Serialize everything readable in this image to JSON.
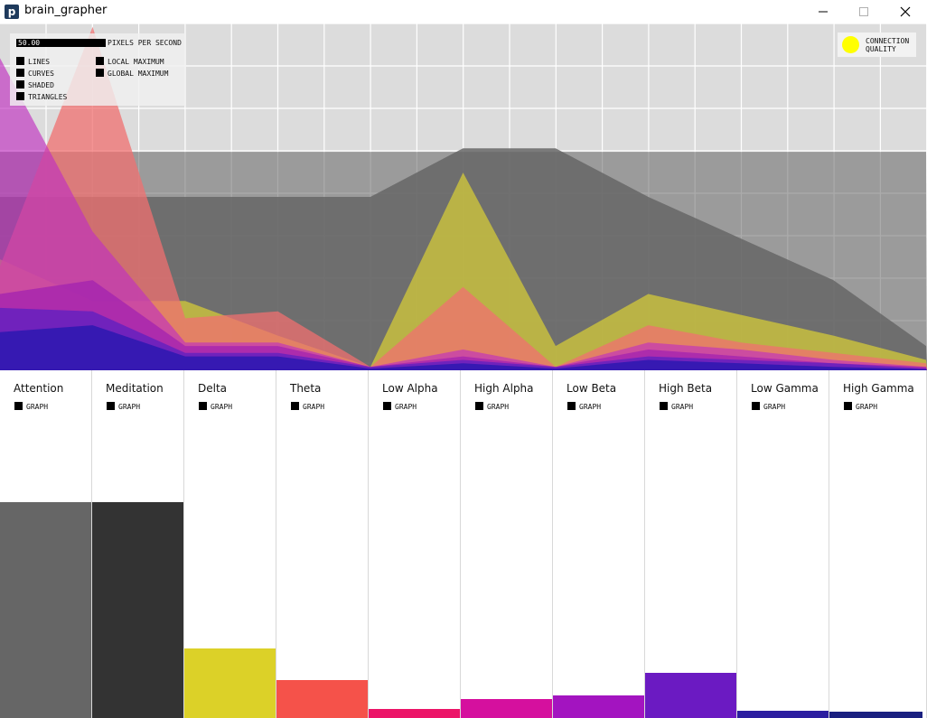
{
  "window": {
    "title": "brain_grapher",
    "icon": "processing-logo-icon"
  },
  "controls": {
    "pixels_per_second_value": "50.00",
    "pixels_per_second_label": "PIXELS PER SECOND",
    "checkboxes": [
      "LINES",
      "CURVES",
      "SHADED",
      "TRIANGLES",
      "LOCAL MAXIMUM",
      "GLOBAL MAXIMUM"
    ]
  },
  "connection": {
    "label_line1": "CONNECTION",
    "label_line2": "QUALITY",
    "color": "#ffff00"
  },
  "channels": [
    {
      "name": "Attention",
      "graph_label": "GRAPH",
      "color": "#666666",
      "level": 0.62
    },
    {
      "name": "Meditation",
      "graph_label": "GRAPH",
      "color": "#333333",
      "level": 0.62
    },
    {
      "name": "Delta",
      "graph_label": "GRAPH",
      "color": "#dcd128",
      "level": 0.2
    },
    {
      "name": "Theta",
      "graph_label": "GRAPH",
      "color": "#f5524a",
      "level": 0.11
    },
    {
      "name": "Low Alpha",
      "graph_label": "GRAPH",
      "color": "#ec1468",
      "level": 0.025
    },
    {
      "name": "High Alpha",
      "graph_label": "GRAPH",
      "color": "#d5109e",
      "level": 0.055
    },
    {
      "name": "Low Beta",
      "graph_label": "GRAPH",
      "color": "#a314c0",
      "level": 0.065
    },
    {
      "name": "High Beta",
      "graph_label": "GRAPH",
      "color": "#6b1ac2",
      "level": 0.13
    },
    {
      "name": "Low Gamma",
      "graph_label": "GRAPH",
      "color": "#2c1ea0",
      "level": 0.022
    },
    {
      "name": "High Gamma",
      "graph_label": "GRAPH",
      "color": "#1a2080",
      "level": 0.018
    }
  ],
  "graph": {
    "background": "#dcdcdc",
    "series": [
      {
        "name": "Attention",
        "color": "#666666",
        "opacity": 0.55,
        "values": [
          0.63,
          0.63,
          0.63,
          0.63,
          0.63,
          0.63,
          0.63,
          0.63,
          0.63,
          0.63,
          0.63
        ]
      },
      {
        "name": "Meditation",
        "color": "#666666",
        "opacity": 0.85,
        "values": [
          0.5,
          0.5,
          0.5,
          0.5,
          0.5,
          0.64,
          0.64,
          0.5,
          0.38,
          0.26,
          0.07
        ]
      },
      {
        "name": "Delta",
        "color": "#c8c040",
        "opacity": 0.85,
        "values": [
          0.32,
          0.2,
          0.2,
          0.1,
          0.01,
          0.57,
          0.07,
          0.22,
          0.16,
          0.1,
          0.03
        ]
      },
      {
        "name": "Theta",
        "color": "#f07070",
        "opacity": 0.75,
        "values": [
          0.3,
          0.99,
          0.15,
          0.17,
          0.01,
          0.24,
          0.01,
          0.13,
          0.08,
          0.05,
          0.02
        ]
      },
      {
        "name": "Low Alpha",
        "color": "#c030c0",
        "opacity": 0.65,
        "values": [
          0.9,
          0.4,
          0.08,
          0.08,
          0.01,
          0.06,
          0.01,
          0.08,
          0.06,
          0.03,
          0.01
        ]
      },
      {
        "name": "High Alpha",
        "color": "#a020b0",
        "opacity": 0.7,
        "values": [
          0.22,
          0.26,
          0.07,
          0.07,
          0.01,
          0.04,
          0.01,
          0.06,
          0.04,
          0.02,
          0.01
        ]
      },
      {
        "name": "High Beta",
        "color": "#6020c0",
        "opacity": 0.8,
        "values": [
          0.18,
          0.17,
          0.05,
          0.05,
          0.01,
          0.03,
          0.01,
          0.04,
          0.03,
          0.02,
          0.005
        ]
      },
      {
        "name": "High Gamma",
        "color": "#3018b0",
        "opacity": 0.9,
        "values": [
          0.11,
          0.13,
          0.04,
          0.04,
          0.005,
          0.02,
          0.005,
          0.03,
          0.02,
          0.01,
          0.003
        ]
      }
    ]
  }
}
